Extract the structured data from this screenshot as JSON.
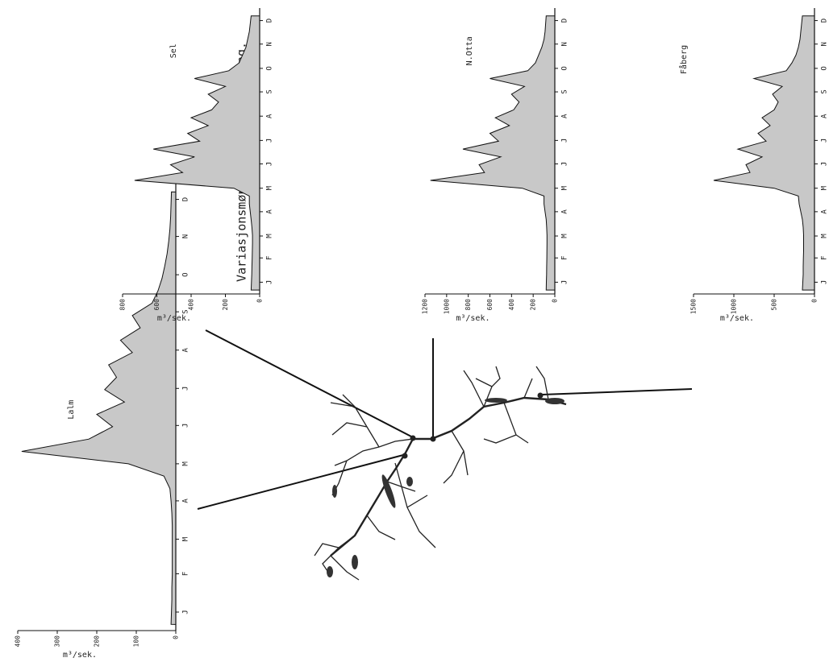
{
  "title": "Variasjonsmønster for vannføring.",
  "chart_data": [
    {
      "type": "area",
      "title": "Lalm",
      "ylabel": "m³/sek.",
      "color": "#c8c8c8",
      "xlim": [
        0,
        365
      ],
      "ylim": [
        0,
        400
      ],
      "yticks": [
        0,
        100,
        200,
        300,
        400
      ],
      "xticks": [
        {
          "value": 15,
          "label": "J"
        },
        {
          "value": 46,
          "label": "F"
        },
        {
          "value": 74,
          "label": "M"
        },
        {
          "value": 105,
          "label": "A"
        },
        {
          "value": 135,
          "label": "M"
        },
        {
          "value": 166,
          "label": "J"
        },
        {
          "value": 196,
          "label": "J"
        },
        {
          "value": 227,
          "label": "A"
        },
        {
          "value": 258,
          "label": "S"
        },
        {
          "value": 288,
          "label": "O"
        },
        {
          "value": 319,
          "label": "N"
        },
        {
          "value": 349,
          "label": "D"
        }
      ],
      "x": [
        5,
        15,
        25,
        35,
        45,
        55,
        65,
        75,
        85,
        95,
        105,
        115,
        125,
        135,
        145,
        155,
        165,
        175,
        185,
        195,
        205,
        215,
        225,
        235,
        245,
        255,
        265,
        275,
        285,
        295,
        305,
        315,
        325,
        335,
        345,
        355
      ],
      "values": [
        12,
        11,
        10,
        10,
        9,
        9,
        9,
        9,
        9,
        10,
        12,
        15,
        30,
        120,
        390,
        220,
        160,
        200,
        130,
        180,
        150,
        170,
        110,
        140,
        90,
        110,
        60,
        45,
        35,
        28,
        22,
        18,
        15,
        13,
        12,
        11
      ]
    },
    {
      "type": "area",
      "title": "Sel",
      "ylabel": "m³/sek.",
      "color": "#c8c8c8",
      "xlim": [
        0,
        365
      ],
      "ylim": [
        0,
        800
      ],
      "yticks": [
        0,
        200,
        400,
        600,
        800
      ],
      "xticks": [
        {
          "value": 15,
          "label": "J"
        },
        {
          "value": 46,
          "label": "F"
        },
        {
          "value": 74,
          "label": "M"
        },
        {
          "value": 105,
          "label": "A"
        },
        {
          "value": 135,
          "label": "M"
        },
        {
          "value": 166,
          "label": "J"
        },
        {
          "value": 196,
          "label": "J"
        },
        {
          "value": 227,
          "label": "A"
        },
        {
          "value": 258,
          "label": "S"
        },
        {
          "value": 288,
          "label": "O"
        },
        {
          "value": 319,
          "label": "N"
        },
        {
          "value": 349,
          "label": "D"
        }
      ],
      "x": [
        5,
        15,
        25,
        35,
        45,
        55,
        65,
        75,
        85,
        95,
        105,
        115,
        125,
        135,
        145,
        155,
        165,
        175,
        185,
        195,
        205,
        215,
        225,
        235,
        245,
        255,
        265,
        275,
        285,
        295,
        305,
        315,
        325,
        335,
        345,
        355
      ],
      "values": [
        50,
        48,
        46,
        45,
        44,
        43,
        42,
        42,
        45,
        50,
        55,
        60,
        60,
        150,
        730,
        450,
        520,
        380,
        620,
        350,
        420,
        300,
        400,
        280,
        240,
        300,
        200,
        380,
        180,
        120,
        100,
        80,
        70,
        60,
        55,
        50
      ]
    },
    {
      "type": "area",
      "title": "N.Otta",
      "ylabel": "m³/sek.",
      "color": "#c8c8c8",
      "xlim": [
        0,
        365
      ],
      "ylim": [
        0,
        1200
      ],
      "yticks": [
        0,
        200,
        400,
        600,
        800,
        1000,
        1200
      ],
      "xticks": [
        {
          "value": 15,
          "label": "J"
        },
        {
          "value": 46,
          "label": "F"
        },
        {
          "value": 74,
          "label": "M"
        },
        {
          "value": 105,
          "label": "A"
        },
        {
          "value": 135,
          "label": "M"
        },
        {
          "value": 166,
          "label": "J"
        },
        {
          "value": 196,
          "label": "J"
        },
        {
          "value": 227,
          "label": "A"
        },
        {
          "value": 258,
          "label": "S"
        },
        {
          "value": 288,
          "label": "O"
        },
        {
          "value": 319,
          "label": "N"
        },
        {
          "value": 349,
          "label": "D"
        }
      ],
      "x": [
        5,
        15,
        25,
        35,
        45,
        55,
        65,
        75,
        85,
        95,
        105,
        115,
        125,
        135,
        145,
        155,
        165,
        175,
        185,
        195,
        205,
        215,
        225,
        235,
        245,
        255,
        265,
        275,
        285,
        295,
        305,
        315,
        325,
        335,
        345,
        355
      ],
      "values": [
        80,
        78,
        76,
        75,
        74,
        73,
        72,
        72,
        75,
        80,
        90,
        100,
        100,
        300,
        1150,
        650,
        700,
        500,
        850,
        520,
        600,
        420,
        550,
        380,
        330,
        400,
        280,
        600,
        250,
        180,
        150,
        120,
        100,
        90,
        85,
        80
      ]
    },
    {
      "type": "area",
      "title": "Fåberg",
      "ylabel": "m³/sek.",
      "color": "#c8c8c8",
      "xlim": [
        0,
        365
      ],
      "ylim": [
        0,
        1500
      ],
      "yticks": [
        0,
        500,
        1000,
        1500
      ],
      "xticks": [
        {
          "value": 15,
          "label": "J"
        },
        {
          "value": 46,
          "label": "F"
        },
        {
          "value": 74,
          "label": "M"
        },
        {
          "value": 105,
          "label": "A"
        },
        {
          "value": 135,
          "label": "M"
        },
        {
          "value": 166,
          "label": "J"
        },
        {
          "value": 196,
          "label": "J"
        },
        {
          "value": 227,
          "label": "A"
        },
        {
          "value": 258,
          "label": "S"
        },
        {
          "value": 288,
          "label": "O"
        },
        {
          "value": 319,
          "label": "N"
        },
        {
          "value": 349,
          "label": "D"
        }
      ],
      "x": [
        5,
        15,
        25,
        35,
        45,
        55,
        65,
        75,
        85,
        95,
        105,
        115,
        125,
        135,
        145,
        155,
        165,
        175,
        185,
        195,
        205,
        215,
        225,
        235,
        245,
        255,
        265,
        275,
        285,
        295,
        305,
        315,
        325,
        335,
        345,
        355
      ],
      "values": [
        150,
        145,
        140,
        140,
        138,
        135,
        135,
        135,
        140,
        150,
        170,
        190,
        200,
        500,
        1250,
        800,
        850,
        650,
        950,
        600,
        700,
        550,
        650,
        500,
        450,
        520,
        400,
        750,
        350,
        280,
        230,
        200,
        180,
        170,
        160,
        150
      ]
    }
  ]
}
